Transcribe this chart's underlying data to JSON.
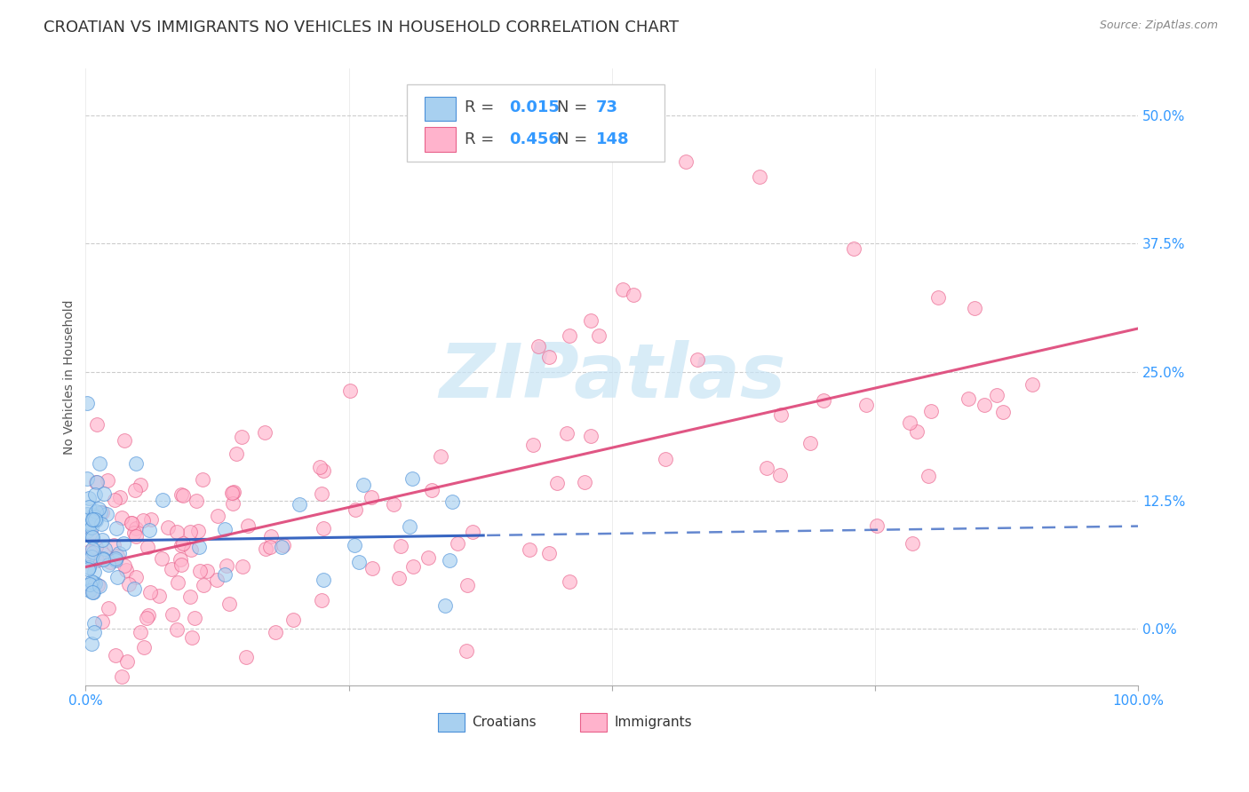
{
  "title": "CROATIAN VS IMMIGRANTS NO VEHICLES IN HOUSEHOLD CORRELATION CHART",
  "source": "Source: ZipAtlas.com",
  "ylabel": "No Vehicles in Household",
  "croatians_R": 0.015,
  "croatians_N": 73,
  "immigrants_R": 0.456,
  "immigrants_N": 148,
  "x_min": 0.0,
  "x_max": 1.0,
  "y_min": -0.055,
  "y_max": 0.545,
  "yticks": [
    0.0,
    0.125,
    0.25,
    0.375,
    0.5
  ],
  "ytick_labels": [
    "0.0%",
    "12.5%",
    "25.0%",
    "37.5%",
    "50.0%"
  ],
  "xticks": [
    0.0,
    0.25,
    0.5,
    0.75,
    1.0
  ],
  "xtick_labels": [
    "0.0%",
    "",
    "",
    "",
    "100.0%"
  ],
  "croatian_scatter_color": "#a8d0f0",
  "croatian_edge_color": "#4a90d9",
  "immigrant_scatter_color": "#ffb3cc",
  "immigrant_edge_color": "#e8608a",
  "croatian_line_color": "#2255bb",
  "immigrant_line_color": "#dd4477",
  "background_color": "#ffffff",
  "grid_color": "#cccccc",
  "tick_color": "#3399ff",
  "title_color": "#333333",
  "source_color": "#888888",
  "watermark_color": "#c8e4f5",
  "title_fontsize": 13,
  "axis_label_fontsize": 10,
  "tick_fontsize": 11,
  "legend_fontsize": 13,
  "legend_number_color": "#3399ff"
}
